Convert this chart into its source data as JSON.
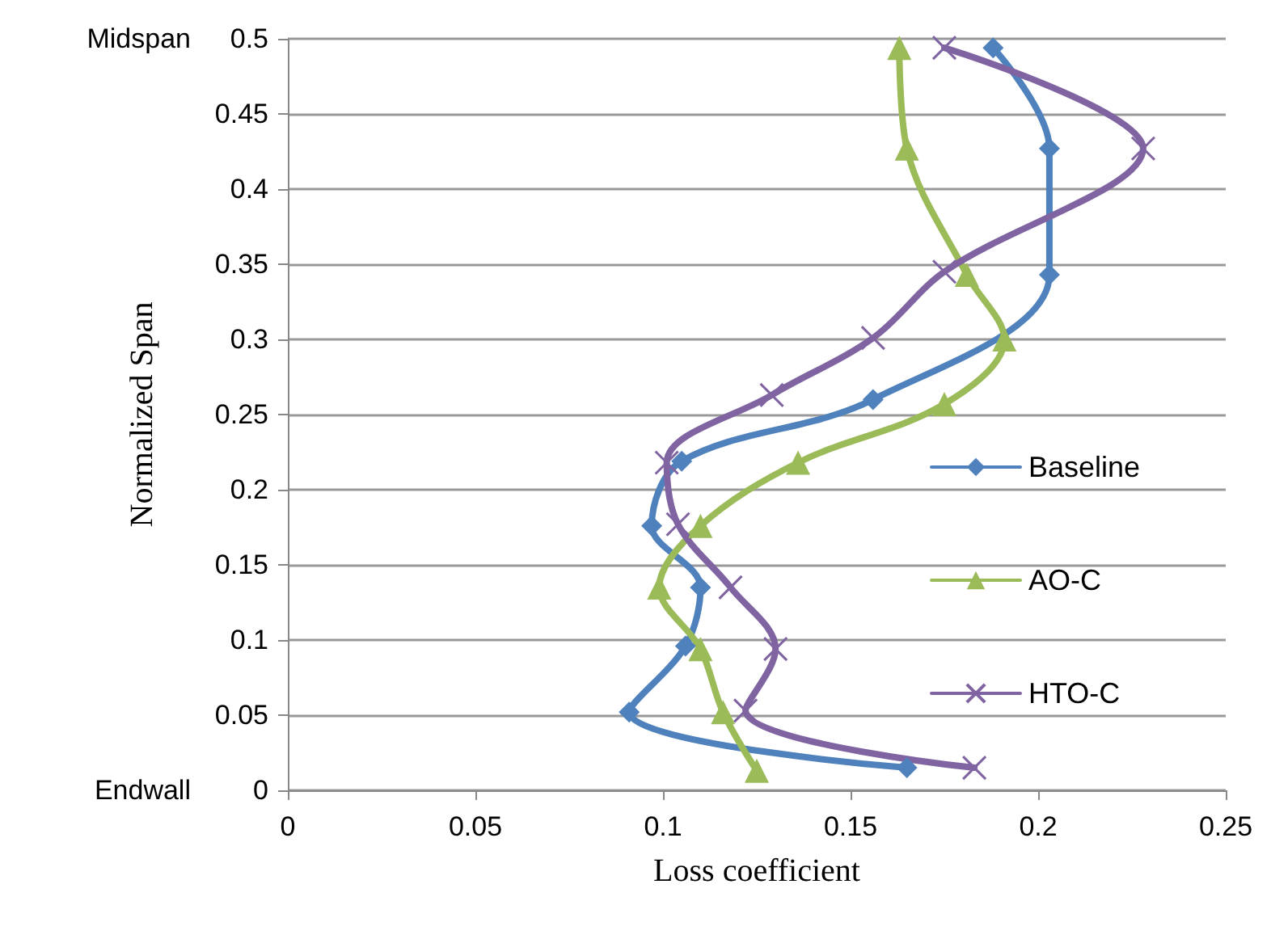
{
  "chart_data": {
    "type": "line",
    "xlabel": "Loss coefficient",
    "ylabel": "Normalized Span",
    "xlim": [
      0,
      0.25
    ],
    "xticks": [
      0,
      0.05,
      0.1,
      0.15,
      0.2,
      0.25
    ],
    "ylim": [
      0,
      0.5
    ],
    "yticks": [
      0,
      0.05,
      0.1,
      0.15,
      0.2,
      0.25,
      0.3,
      0.35,
      0.4,
      0.45,
      0.5
    ],
    "grid": "y",
    "legend": "right",
    "line_style": "solid",
    "annotations": [
      "Midspan",
      "Endwall"
    ],
    "series": [
      {
        "name": "Baseline",
        "color": "#4f81bd",
        "marker": "diamond",
        "x": [
          0.188,
          0.203,
          0.203,
          0.156,
          0.105,
          0.097,
          0.11,
          0.106,
          0.091,
          0.165
        ],
        "values": [
          0.494,
          0.427,
          0.343,
          0.26,
          0.219,
          0.176,
          0.135,
          0.096,
          0.052,
          0.015
        ]
      },
      {
        "name": "AO-C",
        "color": "#9bbb59",
        "marker": "triangle",
        "x": [
          0.163,
          0.165,
          0.181,
          0.191,
          0.175,
          0.136,
          0.11,
          0.099,
          0.11,
          0.116,
          0.125
        ],
        "values": [
          0.494,
          0.427,
          0.343,
          0.3,
          0.257,
          0.218,
          0.176,
          0.135,
          0.094,
          0.052,
          0.013
        ]
      },
      {
        "name": "HTO-C",
        "color": "#8064a2",
        "marker": "cross",
        "x": [
          0.175,
          0.228,
          0.175,
          0.156,
          0.129,
          0.101,
          0.104,
          0.118,
          0.13,
          0.122,
          0.183
        ],
        "values": [
          0.494,
          0.427,
          0.345,
          0.301,
          0.263,
          0.218,
          0.177,
          0.135,
          0.094,
          0.053,
          0.015
        ]
      }
    ]
  }
}
